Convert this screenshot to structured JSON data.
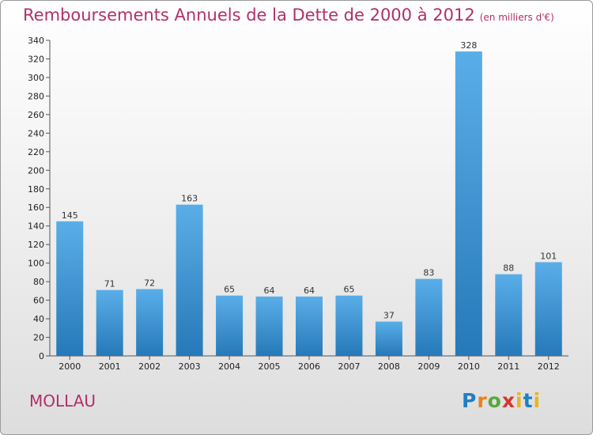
{
  "header": {
    "title": "Remboursements Annuels de la Dette de 2000 à 2012",
    "unit": "(en milliers d'€)"
  },
  "footer": {
    "commune": "MOLLAU",
    "logo": "Proxiti"
  },
  "chart_data": {
    "type": "bar",
    "title": "Remboursements Annuels de la Dette de 2000 à 2012",
    "subtitle": "(en milliers d'€)",
    "categories": [
      "2000",
      "2001",
      "2002",
      "2003",
      "2004",
      "2005",
      "2006",
      "2007",
      "2008",
      "2009",
      "2010",
      "2011",
      "2012"
    ],
    "values": [
      145,
      71,
      72,
      163,
      65,
      64,
      64,
      65,
      37,
      83,
      328,
      88,
      101
    ],
    "ylim": [
      0,
      340
    ],
    "ytick_step": 20,
    "grid": false,
    "colors": {
      "bar_light": "#5aaee8",
      "bar_dark": "#2679b8",
      "title": "#b0306a"
    }
  }
}
